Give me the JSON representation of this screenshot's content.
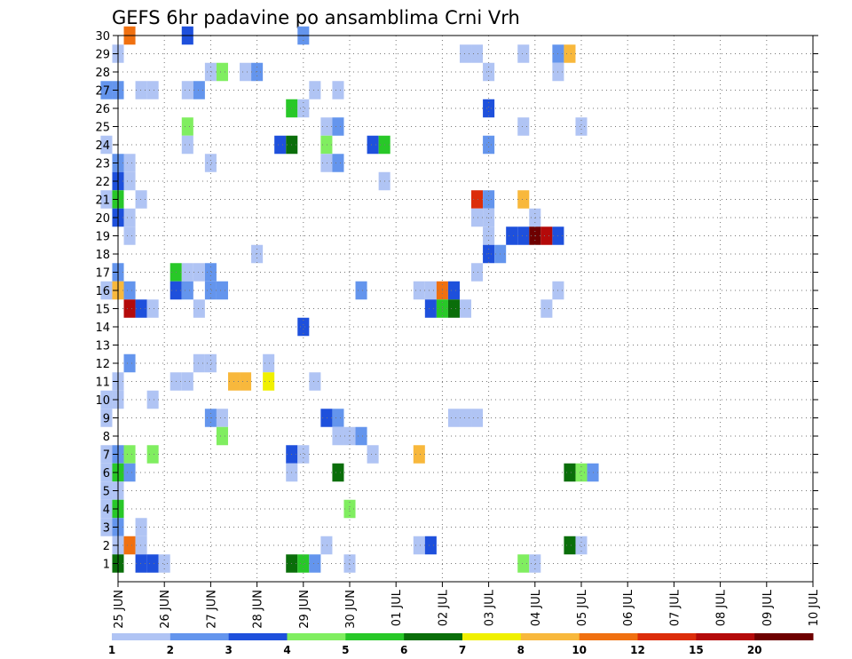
{
  "chart_data": {
    "type": "heatmap",
    "title": "GEFS 6hr padavine po ansamblima Crni Vrh",
    "xlabel": "",
    "ylabel": "",
    "x_tick_labels": [
      "25 JUN",
      "26 JUN",
      "27 JUN",
      "28 JUN",
      "29 JUN",
      "30 JUN",
      "01 JUL",
      "02 JUL",
      "03 JUL",
      "04 JUL",
      "05 JUL",
      "06 JUL",
      "07 JUL",
      "08 JUL",
      "09 JUL",
      "10 JUL"
    ],
    "y_tick_labels": [
      "1",
      "2",
      "3",
      "4",
      "5",
      "6",
      "7",
      "8",
      "9",
      "10",
      "11",
      "12",
      "13",
      "14",
      "15",
      "16",
      "17",
      "18",
      "19",
      "20",
      "21",
      "22",
      "23",
      "24",
      "25",
      "26",
      "27",
      "28",
      "29",
      "30"
    ],
    "xlim": [
      0,
      15
    ],
    "ylim": [
      0,
      30
    ],
    "grid": true,
    "legend": {
      "position": "bottom",
      "thresholds": [
        "1",
        "2",
        "3",
        "4",
        "5",
        "6",
        "7",
        "8",
        "10",
        "12",
        "15",
        "20"
      ],
      "colors": [
        "#b0c4f4",
        "#6495ed",
        "#1e50dc",
        "#80ee60",
        "#28c828",
        "#0a6e0a",
        "#f0f000",
        "#f8b83c",
        "#f07010",
        "#dc2d0a",
        "#b40a0a",
        "#6e0000"
      ]
    },
    "cells": [
      {
        "x": 0.25,
        "y": 30,
        "c": 9
      },
      {
        "x": 1.5,
        "y": 30,
        "c": 3
      },
      {
        "x": 4,
        "y": 30,
        "c": 2
      },
      {
        "x": 0,
        "y": 29,
        "c": 1
      },
      {
        "x": 7.5,
        "y": 29,
        "c": 1
      },
      {
        "x": 7.75,
        "y": 29,
        "c": 1
      },
      {
        "x": 8.75,
        "y": 29,
        "c": 1
      },
      {
        "x": 9.5,
        "y": 29,
        "c": 2
      },
      {
        "x": 9.75,
        "y": 29,
        "c": 8
      },
      {
        "x": 2,
        "y": 28,
        "c": 1
      },
      {
        "x": 2.25,
        "y": 28,
        "c": 4
      },
      {
        "x": 2.75,
        "y": 28,
        "c": 1
      },
      {
        "x": 3,
        "y": 28,
        "c": 2
      },
      {
        "x": 8,
        "y": 28,
        "c": 1
      },
      {
        "x": 9.5,
        "y": 28,
        "c": 1
      },
      {
        "x": -0.25,
        "y": 27,
        "c": 2
      },
      {
        "x": 0,
        "y": 27,
        "c": 2
      },
      {
        "x": 0.5,
        "y": 27,
        "c": 1
      },
      {
        "x": 0.75,
        "y": 27,
        "c": 1
      },
      {
        "x": 1.5,
        "y": 27,
        "c": 1
      },
      {
        "x": 1.75,
        "y": 27,
        "c": 2
      },
      {
        "x": 4.25,
        "y": 27,
        "c": 1
      },
      {
        "x": 4.75,
        "y": 27,
        "c": 1
      },
      {
        "x": 3.75,
        "y": 26,
        "c": 5
      },
      {
        "x": 4,
        "y": 26,
        "c": 1
      },
      {
        "x": 8,
        "y": 26,
        "c": 3
      },
      {
        "x": 4.5,
        "y": 25,
        "c": 1
      },
      {
        "x": 4.75,
        "y": 25,
        "c": 2
      },
      {
        "x": 1.5,
        "y": 25,
        "c": 4
      },
      {
        "x": 8.75,
        "y": 25,
        "c": 1
      },
      {
        "x": 10,
        "y": 25,
        "c": 1
      },
      {
        "x": -0.25,
        "y": 24,
        "c": 1
      },
      {
        "x": 3.5,
        "y": 24,
        "c": 3
      },
      {
        "x": 3.75,
        "y": 24,
        "c": 6
      },
      {
        "x": 1.5,
        "y": 24,
        "c": 1
      },
      {
        "x": 4.5,
        "y": 24,
        "c": 4
      },
      {
        "x": 5.5,
        "y": 24,
        "c": 3
      },
      {
        "x": 5.75,
        "y": 24,
        "c": 5
      },
      {
        "x": 8,
        "y": 24,
        "c": 2
      },
      {
        "x": 0.25,
        "y": 23,
        "c": 1
      },
      {
        "x": 0,
        "y": 23,
        "c": 2
      },
      {
        "x": 2,
        "y": 23,
        "c": 1
      },
      {
        "x": 4.5,
        "y": 23,
        "c": 1
      },
      {
        "x": 4.75,
        "y": 23,
        "c": 2
      },
      {
        "x": 0.25,
        "y": 22,
        "c": 1
      },
      {
        "x": 0,
        "y": 22,
        "c": 3
      },
      {
        "x": 5.75,
        "y": 22,
        "c": 1
      },
      {
        "x": -0.25,
        "y": 21,
        "c": 1
      },
      {
        "x": 0,
        "y": 21,
        "c": 5
      },
      {
        "x": 0.5,
        "y": 21,
        "c": 1
      },
      {
        "x": 7.75,
        "y": 21,
        "c": 10
      },
      {
        "x": 8,
        "y": 21,
        "c": 2
      },
      {
        "x": 8.75,
        "y": 21,
        "c": 8
      },
      {
        "x": 0.25,
        "y": 20,
        "c": 1
      },
      {
        "x": 0,
        "y": 20,
        "c": 3
      },
      {
        "x": 7.75,
        "y": 20,
        "c": 1
      },
      {
        "x": 8,
        "y": 20,
        "c": 1
      },
      {
        "x": 9,
        "y": 20,
        "c": 1
      },
      {
        "x": 0.25,
        "y": 19,
        "c": 1
      },
      {
        "x": 8,
        "y": 19,
        "c": 1
      },
      {
        "x": 8.5,
        "y": 19,
        "c": 3
      },
      {
        "x": 8.75,
        "y": 19,
        "c": 3
      },
      {
        "x": 9,
        "y": 19,
        "c": 12
      },
      {
        "x": 9.25,
        "y": 19,
        "c": 11
      },
      {
        "x": 9.5,
        "y": 19,
        "c": 3
      },
      {
        "x": 3,
        "y": 18,
        "c": 1
      },
      {
        "x": 8,
        "y": 18,
        "c": 3
      },
      {
        "x": 8.25,
        "y": 18,
        "c": 2
      },
      {
        "x": 0,
        "y": 17,
        "c": 2
      },
      {
        "x": 1.25,
        "y": 17,
        "c": 5
      },
      {
        "x": 1.5,
        "y": 17,
        "c": 1
      },
      {
        "x": 1.75,
        "y": 17,
        "c": 1
      },
      {
        "x": 2,
        "y": 17,
        "c": 2
      },
      {
        "x": 7.75,
        "y": 17,
        "c": 1
      },
      {
        "x": -0.25,
        "y": 16,
        "c": 1
      },
      {
        "x": 0,
        "y": 16,
        "c": 8
      },
      {
        "x": 0.25,
        "y": 16,
        "c": 2
      },
      {
        "x": 2,
        "y": 16,
        "c": 2
      },
      {
        "x": 2.25,
        "y": 16,
        "c": 2
      },
      {
        "x": 1.25,
        "y": 16,
        "c": 3
      },
      {
        "x": 1.5,
        "y": 16,
        "c": 2
      },
      {
        "x": 5.25,
        "y": 16,
        "c": 2
      },
      {
        "x": 6.5,
        "y": 16,
        "c": 1
      },
      {
        "x": 6.75,
        "y": 16,
        "c": 1
      },
      {
        "x": 7,
        "y": 16,
        "c": 9
      },
      {
        "x": 7.25,
        "y": 16,
        "c": 3
      },
      {
        "x": 9.5,
        "y": 16,
        "c": 1
      },
      {
        "x": 0.25,
        "y": 15,
        "c": 11
      },
      {
        "x": 0.5,
        "y": 15,
        "c": 3
      },
      {
        "x": 0.75,
        "y": 15,
        "c": 1
      },
      {
        "x": 1.75,
        "y": 15,
        "c": 1
      },
      {
        "x": 6.75,
        "y": 15,
        "c": 3
      },
      {
        "x": 7,
        "y": 15,
        "c": 5
      },
      {
        "x": 7.25,
        "y": 15,
        "c": 6
      },
      {
        "x": 7.5,
        "y": 15,
        "c": 1
      },
      {
        "x": 9.25,
        "y": 15,
        "c": 1
      },
      {
        "x": 4,
        "y": 14,
        "c": 3
      },
      {
        "x": 0.25,
        "y": 12,
        "c": 2
      },
      {
        "x": 1.75,
        "y": 12,
        "c": 1
      },
      {
        "x": 2,
        "y": 12,
        "c": 1
      },
      {
        "x": 3.25,
        "y": 12,
        "c": 1
      },
      {
        "x": 0,
        "y": 11,
        "c": 1
      },
      {
        "x": 1.25,
        "y": 11,
        "c": 1
      },
      {
        "x": 1.5,
        "y": 11,
        "c": 1
      },
      {
        "x": 2.5,
        "y": 11,
        "c": 8
      },
      {
        "x": 2.75,
        "y": 11,
        "c": 8
      },
      {
        "x": 3.25,
        "y": 11,
        "c": 7
      },
      {
        "x": 4.25,
        "y": 11,
        "c": 1
      },
      {
        "x": -0.25,
        "y": 10,
        "c": 1
      },
      {
        "x": 0,
        "y": 10,
        "c": 1
      },
      {
        "x": 0.75,
        "y": 10,
        "c": 1
      },
      {
        "x": -0.25,
        "y": 9,
        "c": 1
      },
      {
        "x": 2,
        "y": 9,
        "c": 2
      },
      {
        "x": 2.25,
        "y": 9,
        "c": 1
      },
      {
        "x": 4.5,
        "y": 9,
        "c": 3
      },
      {
        "x": 4.75,
        "y": 9,
        "c": 2
      },
      {
        "x": 7.25,
        "y": 9,
        "c": 1
      },
      {
        "x": 7.5,
        "y": 9,
        "c": 1
      },
      {
        "x": 7.75,
        "y": 9,
        "c": 1
      },
      {
        "x": 2.25,
        "y": 8,
        "c": 4
      },
      {
        "x": 4.75,
        "y": 8,
        "c": 1
      },
      {
        "x": 5,
        "y": 8,
        "c": 1
      },
      {
        "x": 5.25,
        "y": 8,
        "c": 2
      },
      {
        "x": -0.25,
        "y": 7,
        "c": 1
      },
      {
        "x": 0,
        "y": 7,
        "c": 2
      },
      {
        "x": 0.25,
        "y": 7,
        "c": 4
      },
      {
        "x": 0.75,
        "y": 7,
        "c": 4
      },
      {
        "x": 3.75,
        "y": 7,
        "c": 3
      },
      {
        "x": 4,
        "y": 7,
        "c": 1
      },
      {
        "x": 5.5,
        "y": 7,
        "c": 1
      },
      {
        "x": 6.5,
        "y": 7,
        "c": 8
      },
      {
        "x": -0.25,
        "y": 6,
        "c": 1
      },
      {
        "x": 0,
        "y": 6,
        "c": 5
      },
      {
        "x": 0.25,
        "y": 6,
        "c": 2
      },
      {
        "x": 3.75,
        "y": 6,
        "c": 1
      },
      {
        "x": 4.75,
        "y": 6,
        "c": 6
      },
      {
        "x": 9.75,
        "y": 6,
        "c": 6
      },
      {
        "x": 10,
        "y": 6,
        "c": 4
      },
      {
        "x": 10.25,
        "y": 6,
        "c": 2
      },
      {
        "x": -0.25,
        "y": 5,
        "c": 1
      },
      {
        "x": 0,
        "y": 5,
        "c": 1
      },
      {
        "x": -0.25,
        "y": 4,
        "c": 1
      },
      {
        "x": 0,
        "y": 4,
        "c": 5
      },
      {
        "x": 5,
        "y": 4,
        "c": 4
      },
      {
        "x": -0.25,
        "y": 3,
        "c": 1
      },
      {
        "x": 0,
        "y": 3,
        "c": 2
      },
      {
        "x": 0.5,
        "y": 3,
        "c": 1
      },
      {
        "x": 0,
        "y": 2,
        "c": 1
      },
      {
        "x": 0.25,
        "y": 2,
        "c": 9
      },
      {
        "x": 0.5,
        "y": 2,
        "c": 1
      },
      {
        "x": 4.5,
        "y": 2,
        "c": 1
      },
      {
        "x": 6.5,
        "y": 2,
        "c": 1
      },
      {
        "x": 6.75,
        "y": 2,
        "c": 3
      },
      {
        "x": 9.75,
        "y": 2,
        "c": 6
      },
      {
        "x": 10,
        "y": 2,
        "c": 1
      },
      {
        "x": 0,
        "y": 1,
        "c": 6
      },
      {
        "x": 0.5,
        "y": 1,
        "c": 3
      },
      {
        "x": 0.75,
        "y": 1,
        "c": 3
      },
      {
        "x": 1,
        "y": 1,
        "c": 1
      },
      {
        "x": 3.75,
        "y": 1,
        "c": 6
      },
      {
        "x": 4,
        "y": 1,
        "c": 5
      },
      {
        "x": 4.25,
        "y": 1,
        "c": 2
      },
      {
        "x": 5,
        "y": 1,
        "c": 1
      },
      {
        "x": 8.75,
        "y": 1,
        "c": 4
      },
      {
        "x": 9,
        "y": 1,
        "c": 1
      }
    ]
  }
}
